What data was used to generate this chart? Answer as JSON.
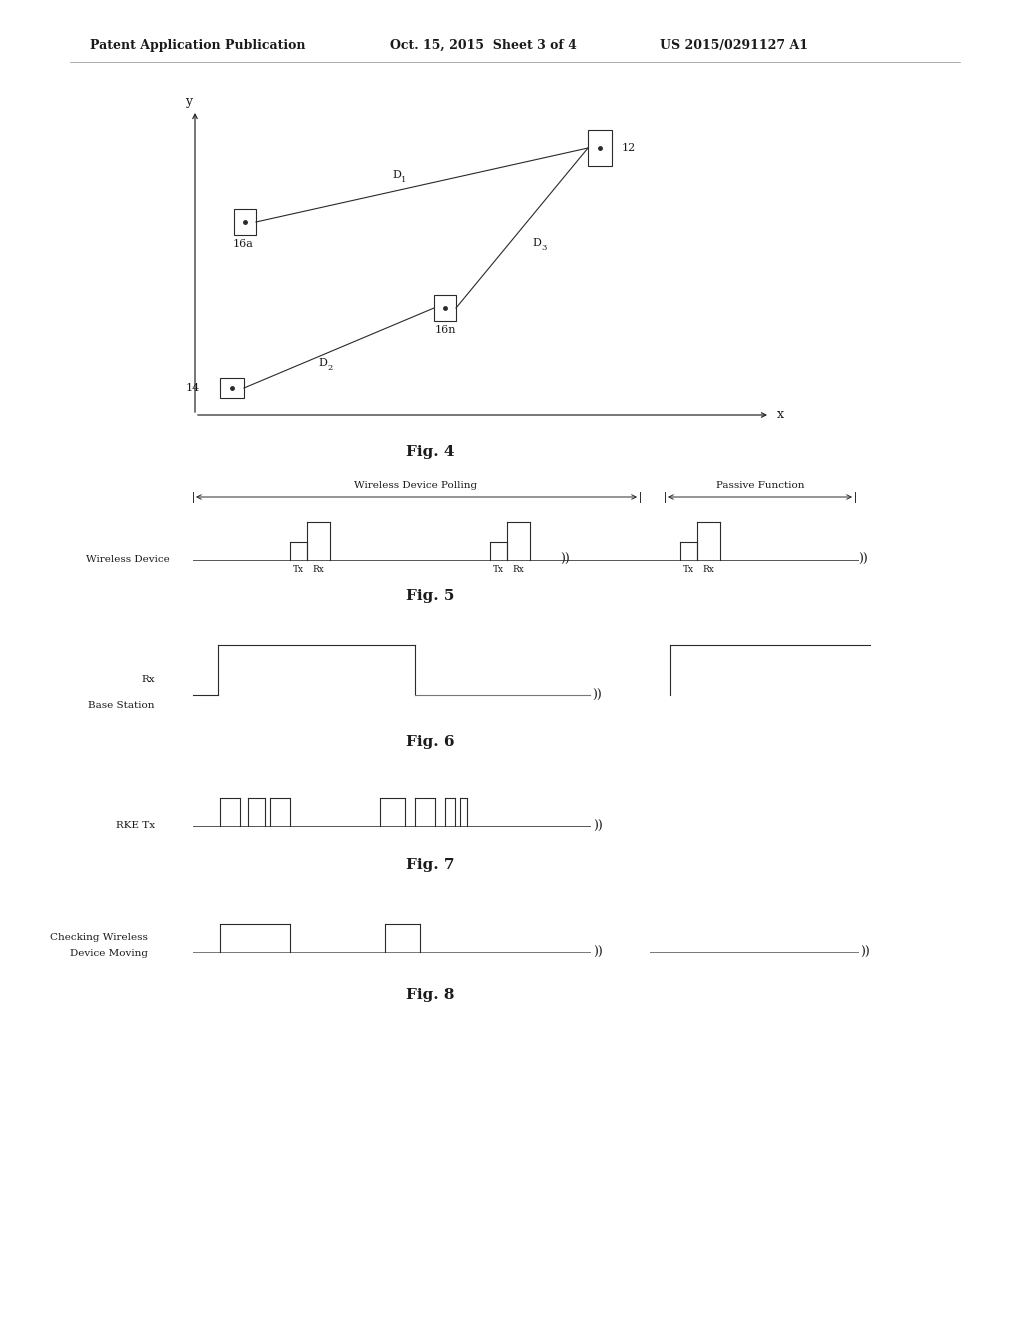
{
  "bg_color": "#ffffff",
  "header_left": "Patent Application Publication",
  "header_mid": "Oct. 15, 2015  Sheet 3 of 4",
  "header_right": "US 2015/0291127 A1",
  "fig4_label": "Fig. 4",
  "fig5_label": "Fig. 5",
  "fig6_label": "Fig. 6",
  "fig7_label": "Fig. 7",
  "fig8_label": "Fig. 8",
  "line_color": "#2a2a2a",
  "text_color": "#1a1a1a"
}
